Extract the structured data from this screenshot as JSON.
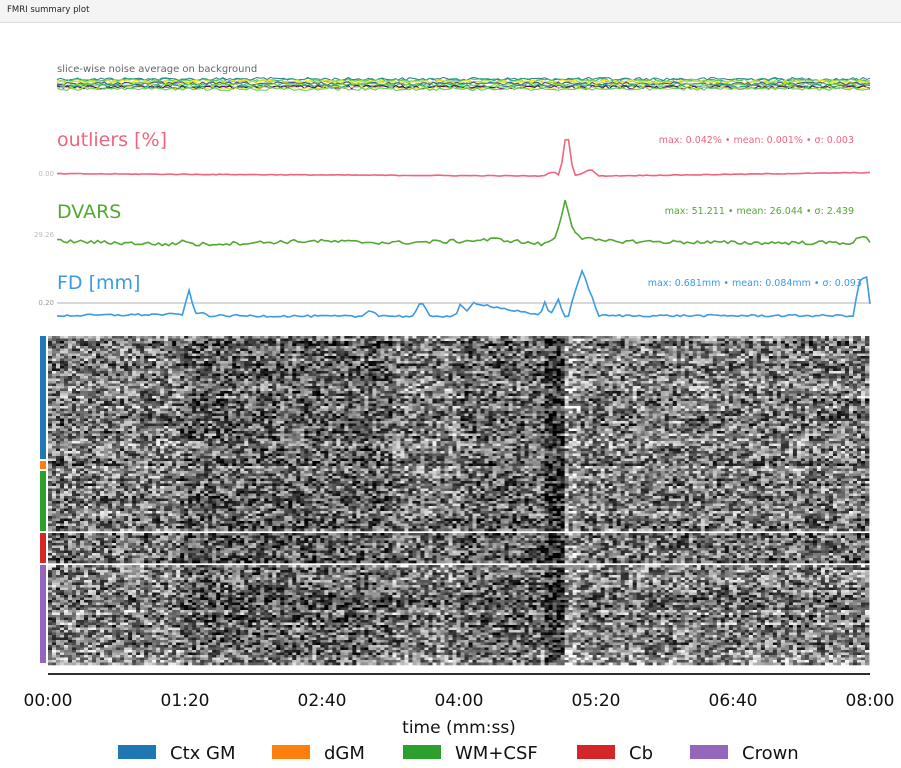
{
  "window": {
    "title": "FMRI summary plot"
  },
  "colors": {
    "outliers": "#f0647e",
    "dvars": "#52a932",
    "fd": "#3b9be4",
    "ctx_gm": "#1f77b4",
    "dgm": "#ff7f0e",
    "wm_csf": "#2ca02c",
    "cb": "#d62728",
    "crown": "#9467bd"
  },
  "chart_data": [
    {
      "type": "line",
      "title": "slice-wise noise average on background",
      "xlim": [
        0,
        480
      ],
      "series_count": 12
    },
    {
      "type": "line",
      "title": "outliers [%]",
      "stats": "max: 0.042% • mean: 0.001% • σ: 0.003",
      "ref_tick": "0.00",
      "ylim": [
        0,
        0.046
      ],
      "x": [
        0,
        287,
        293,
        297,
        301,
        305,
        311,
        315,
        320,
        480
      ],
      "values": [
        0.002,
        0.0,
        0.004,
        0.0,
        0.042,
        0.0,
        0.003,
        0.006,
        0.0,
        0.003
      ]
    },
    {
      "type": "line",
      "title": "DVARS",
      "stats": "max: 51.211 • mean: 26.044 • σ: 2.439",
      "ref_tick": "29.26",
      "ylim": [
        20,
        54
      ],
      "x": [
        0,
        70,
        75,
        80,
        150,
        200,
        240,
        260,
        288,
        295,
        300,
        305,
        310,
        320,
        400,
        470,
        475,
        480
      ],
      "values": [
        27,
        25,
        28,
        25,
        27,
        26,
        27,
        28,
        25,
        30,
        51.2,
        33,
        29,
        27,
        26,
        26,
        30,
        27
      ]
    },
    {
      "type": "line",
      "title": "FD [mm]",
      "stats": "max: 0.681mm • mean: 0.084mm • σ: 0.093",
      "ref_tick": "0.20",
      "ref_line": 0.2,
      "ylim": [
        0,
        0.75
      ],
      "x": [
        0,
        74,
        78,
        82,
        86,
        90,
        180,
        185,
        190,
        210,
        215,
        220,
        235,
        238,
        242,
        246,
        285,
        288,
        291,
        296,
        299,
        302,
        305,
        310,
        320,
        470,
        474,
        478,
        480
      ],
      "values": [
        0.06,
        0.08,
        0.4,
        0.08,
        0.1,
        0.06,
        0.05,
        0.15,
        0.06,
        0.05,
        0.25,
        0.06,
        0.05,
        0.2,
        0.12,
        0.24,
        0.06,
        0.25,
        0.06,
        0.3,
        0.05,
        0.05,
        0.35,
        0.68,
        0.06,
        0.06,
        0.55,
        0.6,
        0.22
      ]
    },
    {
      "type": "heatmap",
      "xlabel": "time (mm:ss)",
      "xticks": [
        "00:00",
        "01:20",
        "02:40",
        "04:00",
        "05:20",
        "06:40",
        "08:00"
      ],
      "xlim": [
        0,
        480
      ],
      "legend_position": "bottom",
      "segments": [
        "Ctx GM",
        "dGM",
        "WM+CSF",
        "Cb",
        "Crown"
      ]
    }
  ]
}
